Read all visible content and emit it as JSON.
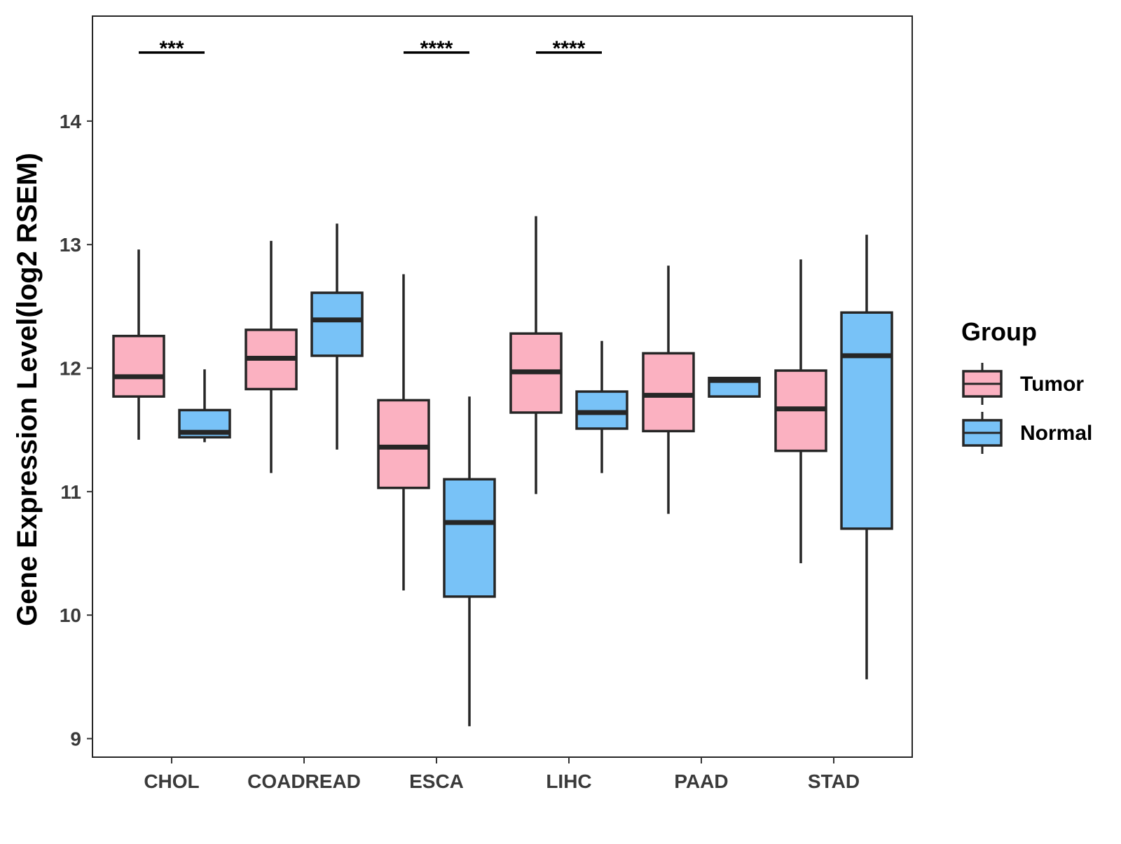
{
  "chart_data": {
    "type": "boxplot",
    "title": "",
    "xlabel": "",
    "ylabel": "Gene Expression Level(log2 RSEM)",
    "ylim": [
      8.85,
      14.85
    ],
    "yticks": [
      9,
      10,
      11,
      12,
      13,
      14
    ],
    "categories": [
      "CHOL",
      "COADREAD",
      "ESCA",
      "LIHC",
      "PAAD",
      "STAD"
    ],
    "groups": [
      "Tumor",
      "Normal"
    ],
    "colors": {
      "Tumor": "#fbb1c1",
      "Normal": "#78c2f7",
      "outline": "#262626"
    },
    "legend": {
      "title": "Group",
      "position": "right"
    },
    "boxes": [
      {
        "category": "CHOL",
        "group": "Tumor",
        "min": 11.42,
        "q1": 11.77,
        "median": 11.93,
        "q3": 12.26,
        "max": 12.96
      },
      {
        "category": "CHOL",
        "group": "Normal",
        "min": 11.4,
        "q1": 11.44,
        "median": 11.48,
        "q3": 11.66,
        "max": 11.99
      },
      {
        "category": "COADREAD",
        "group": "Tumor",
        "min": 11.15,
        "q1": 11.83,
        "median": 12.08,
        "q3": 12.31,
        "max": 13.03
      },
      {
        "category": "COADREAD",
        "group": "Normal",
        "min": 11.34,
        "q1": 12.1,
        "median": 12.39,
        "q3": 12.61,
        "max": 13.17
      },
      {
        "category": "ESCA",
        "group": "Tumor",
        "min": 10.2,
        "q1": 11.03,
        "median": 11.36,
        "q3": 11.74,
        "max": 12.76
      },
      {
        "category": "ESCA",
        "group": "Normal",
        "min": 9.1,
        "q1": 10.15,
        "median": 10.75,
        "q3": 11.1,
        "max": 11.77
      },
      {
        "category": "LIHC",
        "group": "Tumor",
        "min": 10.98,
        "q1": 11.64,
        "median": 11.97,
        "q3": 12.28,
        "max": 13.23
      },
      {
        "category": "LIHC",
        "group": "Normal",
        "min": 11.15,
        "q1": 11.51,
        "median": 11.64,
        "q3": 11.81,
        "max": 12.22
      },
      {
        "category": "PAAD",
        "group": "Tumor",
        "min": 10.82,
        "q1": 11.49,
        "median": 11.78,
        "q3": 12.12,
        "max": 12.83
      },
      {
        "category": "PAAD",
        "group": "Normal",
        "min": 11.77,
        "q1": 11.77,
        "median": 11.9,
        "q3": 11.92,
        "max": 11.92
      },
      {
        "category": "STAD",
        "group": "Tumor",
        "min": 10.42,
        "q1": 11.33,
        "median": 11.67,
        "q3": 11.98,
        "max": 12.88
      },
      {
        "category": "STAD",
        "group": "Normal",
        "min": 9.48,
        "q1": 10.7,
        "median": 12.1,
        "q3": 12.45,
        "max": 13.08
      }
    ],
    "significance": [
      {
        "category": "CHOL",
        "label": "***"
      },
      {
        "category": "ESCA",
        "label": "****"
      },
      {
        "category": "LIHC",
        "label": "****"
      }
    ]
  }
}
